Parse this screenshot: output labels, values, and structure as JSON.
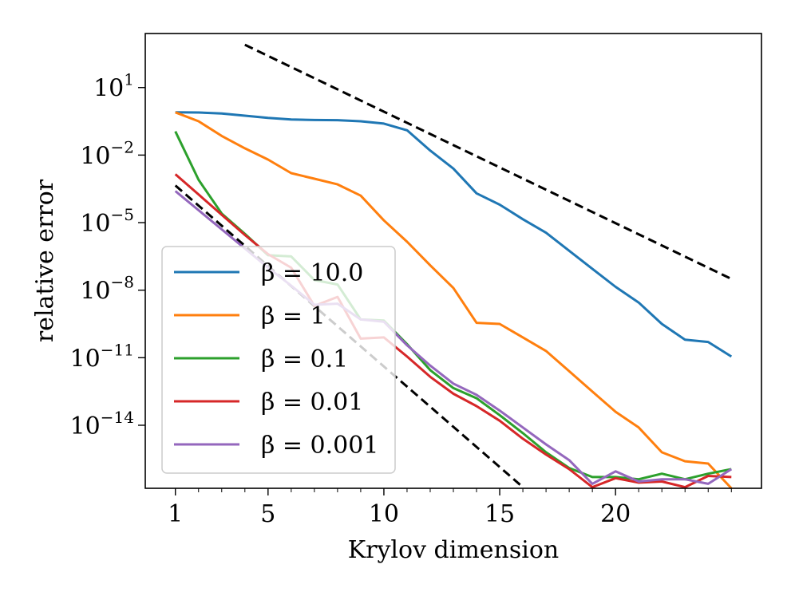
{
  "chart_data": {
    "type": "line",
    "xlabel": "Krylov dimension",
    "ylabel": "relative error",
    "xlim": [
      -0.3,
      26.3
    ],
    "ylim_log10": [
      -16.8,
      3.4
    ],
    "y_scale": "log",
    "x_ticks": [
      1,
      5,
      10,
      15,
      20
    ],
    "x_ticks_labels": [
      "1",
      "5",
      "10",
      "15",
      "20"
    ],
    "x_minor_ticks": [
      2,
      3,
      4,
      6,
      7,
      8,
      9,
      11,
      12,
      13,
      14,
      16,
      17,
      18,
      19,
      21,
      22,
      23,
      24,
      25
    ],
    "y_ticks_log10": [
      1,
      -2,
      -5,
      -8,
      -11,
      -14
    ],
    "y_tick_labels": [
      {
        "base": "10",
        "exp": "1"
      },
      {
        "base": "10",
        "exp": "−2"
      },
      {
        "base": "10",
        "exp": "−5"
      },
      {
        "base": "10",
        "exp": "−8"
      },
      {
        "base": "10",
        "exp": "−11"
      },
      {
        "base": "10",
        "exp": "−14"
      }
    ],
    "legend_position": "lower-left",
    "x": [
      1,
      2,
      3,
      4,
      5,
      6,
      7,
      8,
      9,
      10,
      11,
      12,
      13,
      14,
      15,
      16,
      17,
      18,
      19,
      20,
      21,
      22,
      23,
      24,
      25
    ],
    "series": [
      {
        "name": "β = 10.0",
        "color": "#1f77b4",
        "log10_y": [
          -0.1,
          -0.11,
          -0.15,
          -0.25,
          -0.35,
          -0.42,
          -0.44,
          -0.45,
          -0.5,
          -0.6,
          -0.9,
          -1.8,
          -2.6,
          -3.7,
          -4.2,
          -4.85,
          -5.45,
          -6.25,
          -7.05,
          -7.85,
          -8.55,
          -9.5,
          -10.2,
          -10.3,
          -10.95
        ]
      },
      {
        "name": "β = 1",
        "color": "#ff7f0e",
        "log10_y": [
          -0.1,
          -0.5,
          -1.15,
          -1.7,
          -2.2,
          -2.8,
          -3.05,
          -3.3,
          -3.8,
          -4.9,
          -5.85,
          -6.9,
          -7.9,
          -9.45,
          -9.5,
          -10.1,
          -10.7,
          -11.6,
          -12.5,
          -13.4,
          -14.1,
          -15.2,
          -15.6,
          -15.7,
          -16.8
        ]
      },
      {
        "name": "β = 0.1",
        "color": "#2ca02c",
        "log10_y": [
          -0.95,
          -3.1,
          -4.6,
          -5.5,
          -6.45,
          -6.5,
          -7.55,
          -7.75,
          -9.3,
          -9.35,
          -10.4,
          -11.55,
          -12.35,
          -12.8,
          -13.55,
          -14.35,
          -15.2,
          -15.9,
          -16.3,
          -16.3,
          -16.4,
          -16.15,
          -16.4,
          -16.15,
          -15.95
        ]
      },
      {
        "name": "β = 0.01",
        "color": "#d62728",
        "log10_y": [
          -2.85,
          -3.75,
          -4.65,
          -5.55,
          -6.4,
          -7.0,
          -8.7,
          -8.3,
          -10.15,
          -10.1,
          -10.95,
          -11.85,
          -12.6,
          -13.15,
          -13.8,
          -14.6,
          -15.3,
          -15.95,
          -16.75,
          -16.35,
          -16.55,
          -16.5,
          -16.75,
          -16.25,
          -16.3
        ]
      },
      {
        "name": "β = 0.001",
        "color": "#9467bd",
        "log10_y": [
          -3.6,
          -4.45,
          -5.3,
          -6.15,
          -7.0,
          -7.8,
          -8.65,
          -8.6,
          -9.3,
          -9.4,
          -10.45,
          -11.35,
          -12.15,
          -12.65,
          -13.35,
          -14.1,
          -14.85,
          -15.55,
          -16.6,
          -16.05,
          -16.5,
          -16.4,
          -16.4,
          -16.6,
          -15.95
        ]
      }
    ],
    "reference_lines": [
      {
        "style": "dashed",
        "color": "#000000",
        "x": [
          4,
          25
        ],
        "log10_y": [
          2.9,
          -7.5
        ]
      },
      {
        "style": "dashed",
        "color": "#000000",
        "x": [
          1,
          16
        ],
        "log10_y": [
          -3.35,
          -16.75
        ]
      }
    ]
  }
}
